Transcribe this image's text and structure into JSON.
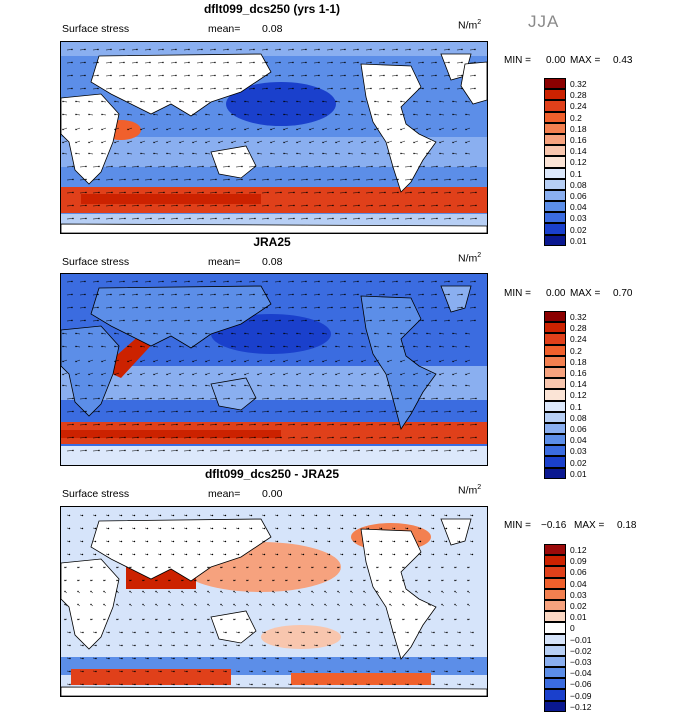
{
  "season": "JJA",
  "unit": "N/m",
  "unit_exp": "2",
  "panels": [
    {
      "title": "dflt099_dcs250 (yrs 1-1)",
      "field": "Surface stress",
      "mean_label": "mean=",
      "mean": "0.08",
      "min_label": "MIN =",
      "min": "0.00",
      "max_label": "MAX =",
      "max": "0.43",
      "levels": [
        "0.32",
        "0.28",
        "0.24",
        "0.2",
        "0.18",
        "0.16",
        "0.14",
        "0.12",
        "0.1",
        "0.08",
        "0.06",
        "0.04",
        "0.03",
        "0.02",
        "0.01"
      ],
      "colors": [
        "#8b0000",
        "#cc2200",
        "#e0401a",
        "#f0602c",
        "#f38050",
        "#f6a27e",
        "#f8c6ae",
        "#fbe4d6",
        "#dce8fb",
        "#b7cff5",
        "#8aaff0",
        "#5c8ee8",
        "#3b6ce0",
        "#1a40cc",
        "#0a1890"
      ]
    },
    {
      "title": "JRA25",
      "field": "Surface stress",
      "mean_label": "mean=",
      "mean": "0.08",
      "min_label": "MIN =",
      "min": "0.00",
      "max_label": "MAX =",
      "max": "0.70",
      "levels": [
        "0.32",
        "0.28",
        "0.24",
        "0.2",
        "0.18",
        "0.16",
        "0.14",
        "0.12",
        "0.1",
        "0.08",
        "0.06",
        "0.04",
        "0.03",
        "0.02",
        "0.01"
      ],
      "colors": [
        "#8b0000",
        "#cc2200",
        "#e0401a",
        "#f0602c",
        "#f38050",
        "#f6a27e",
        "#f8c6ae",
        "#fbe4d6",
        "#dce8fb",
        "#b7cff5",
        "#8aaff0",
        "#5c8ee8",
        "#3b6ce0",
        "#1a40cc",
        "#0a1890"
      ]
    },
    {
      "title": "dflt099_dcs250 - JRA25",
      "field": "Surface stress",
      "mean_label": "mean=",
      "mean": "0.00",
      "min_label": "MIN =",
      "min": "−0.16",
      "max_label": "MAX =",
      "max": "0.18",
      "levels": [
        "0.12",
        "0.09",
        "0.06",
        "0.04",
        "0.03",
        "0.02",
        "0.01",
        "0",
        "−0.01",
        "−0.02",
        "−0.03",
        "−0.04",
        "−0.06",
        "−0.09",
        "−0.12"
      ],
      "colors": [
        "#9b0a0a",
        "#cc2200",
        "#e0401a",
        "#f0602c",
        "#f38050",
        "#f6a27e",
        "#fbd8c4",
        "#ffffff",
        "#d6e4fa",
        "#b7cff5",
        "#8aaff0",
        "#5c8ee8",
        "#3b6ce0",
        "#1a40cc",
        "#0a1890"
      ]
    }
  ],
  "chart_data": {
    "type": "heatmap",
    "field": "Surface stress",
    "season": "JJA",
    "unit": "N/m2",
    "panels": [
      {
        "title": "dflt099_dcs250 (yrs 1-1)",
        "mean": 0.08,
        "min": 0.0,
        "max": 0.43,
        "levels": [
          0.32,
          0.28,
          0.24,
          0.2,
          0.18,
          0.16,
          0.14,
          0.12,
          0.1,
          0.08,
          0.06,
          0.04,
          0.03,
          0.02,
          0.01
        ]
      },
      {
        "title": "JRA25",
        "mean": 0.08,
        "min": 0.0,
        "max": 0.7,
        "levels": [
          0.32,
          0.28,
          0.24,
          0.2,
          0.18,
          0.16,
          0.14,
          0.12,
          0.1,
          0.08,
          0.06,
          0.04,
          0.03,
          0.02,
          0.01
        ]
      },
      {
        "title": "dflt099_dcs250 - JRA25",
        "mean": 0.0,
        "min": -0.16,
        "max": 0.18,
        "levels": [
          0.12,
          0.09,
          0.06,
          0.04,
          0.03,
          0.02,
          0.01,
          0,
          -0.01,
          -0.02,
          -0.03,
          -0.04,
          -0.06,
          -0.09,
          -0.12
        ]
      }
    ]
  }
}
